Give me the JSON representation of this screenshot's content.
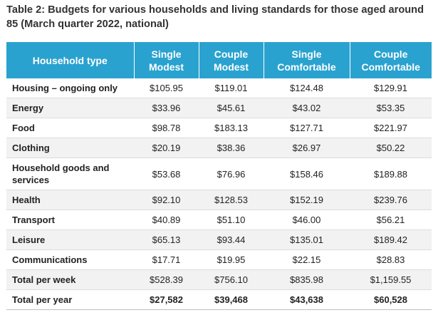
{
  "title": "Table 2: Budgets for various households and living standards for those aged around 85 (March quarter 2022, national)",
  "table": {
    "headers": [
      "Household type",
      "Single Modest",
      "Couple Modest",
      "Single Comfortable",
      "Couple Comfortable"
    ],
    "rows": [
      [
        "Housing – ongoing only",
        "$105.95",
        "$119.01",
        "$124.48",
        "$129.91"
      ],
      [
        "Energy",
        "$33.96",
        "$45.61",
        "$43.02",
        "$53.35"
      ],
      [
        "Food",
        "$98.78",
        "$183.13",
        "$127.71",
        "$221.97"
      ],
      [
        "Clothing",
        "$20.19",
        "$38.36",
        "$26.97",
        "$50.22"
      ],
      [
        "Household goods and services",
        "$53.68",
        "$76.96",
        "$158.46",
        "$189.88"
      ],
      [
        "Health",
        "$92.10",
        "$128.53",
        "$152.19",
        "$239.76"
      ],
      [
        "Transport",
        "$40.89",
        "$51.10",
        "$46.00",
        "$56.21"
      ],
      [
        "Leisure",
        "$65.13",
        "$93.44",
        "$135.01",
        "$189.42"
      ],
      [
        "Communications",
        "$17.71",
        "$19.95",
        "$22.15",
        "$28.83"
      ],
      [
        "Total per week",
        "$528.39",
        "$756.10",
        "$835.98",
        "$1,159.55"
      ],
      [
        "Total per year",
        "$27,582",
        "$39,468",
        "$43,638",
        "$60,528"
      ]
    ]
  },
  "colors": {
    "header_bg": "#2aa2cf",
    "header_text": "#ffffff",
    "stripe": "#f2f2f2"
  }
}
